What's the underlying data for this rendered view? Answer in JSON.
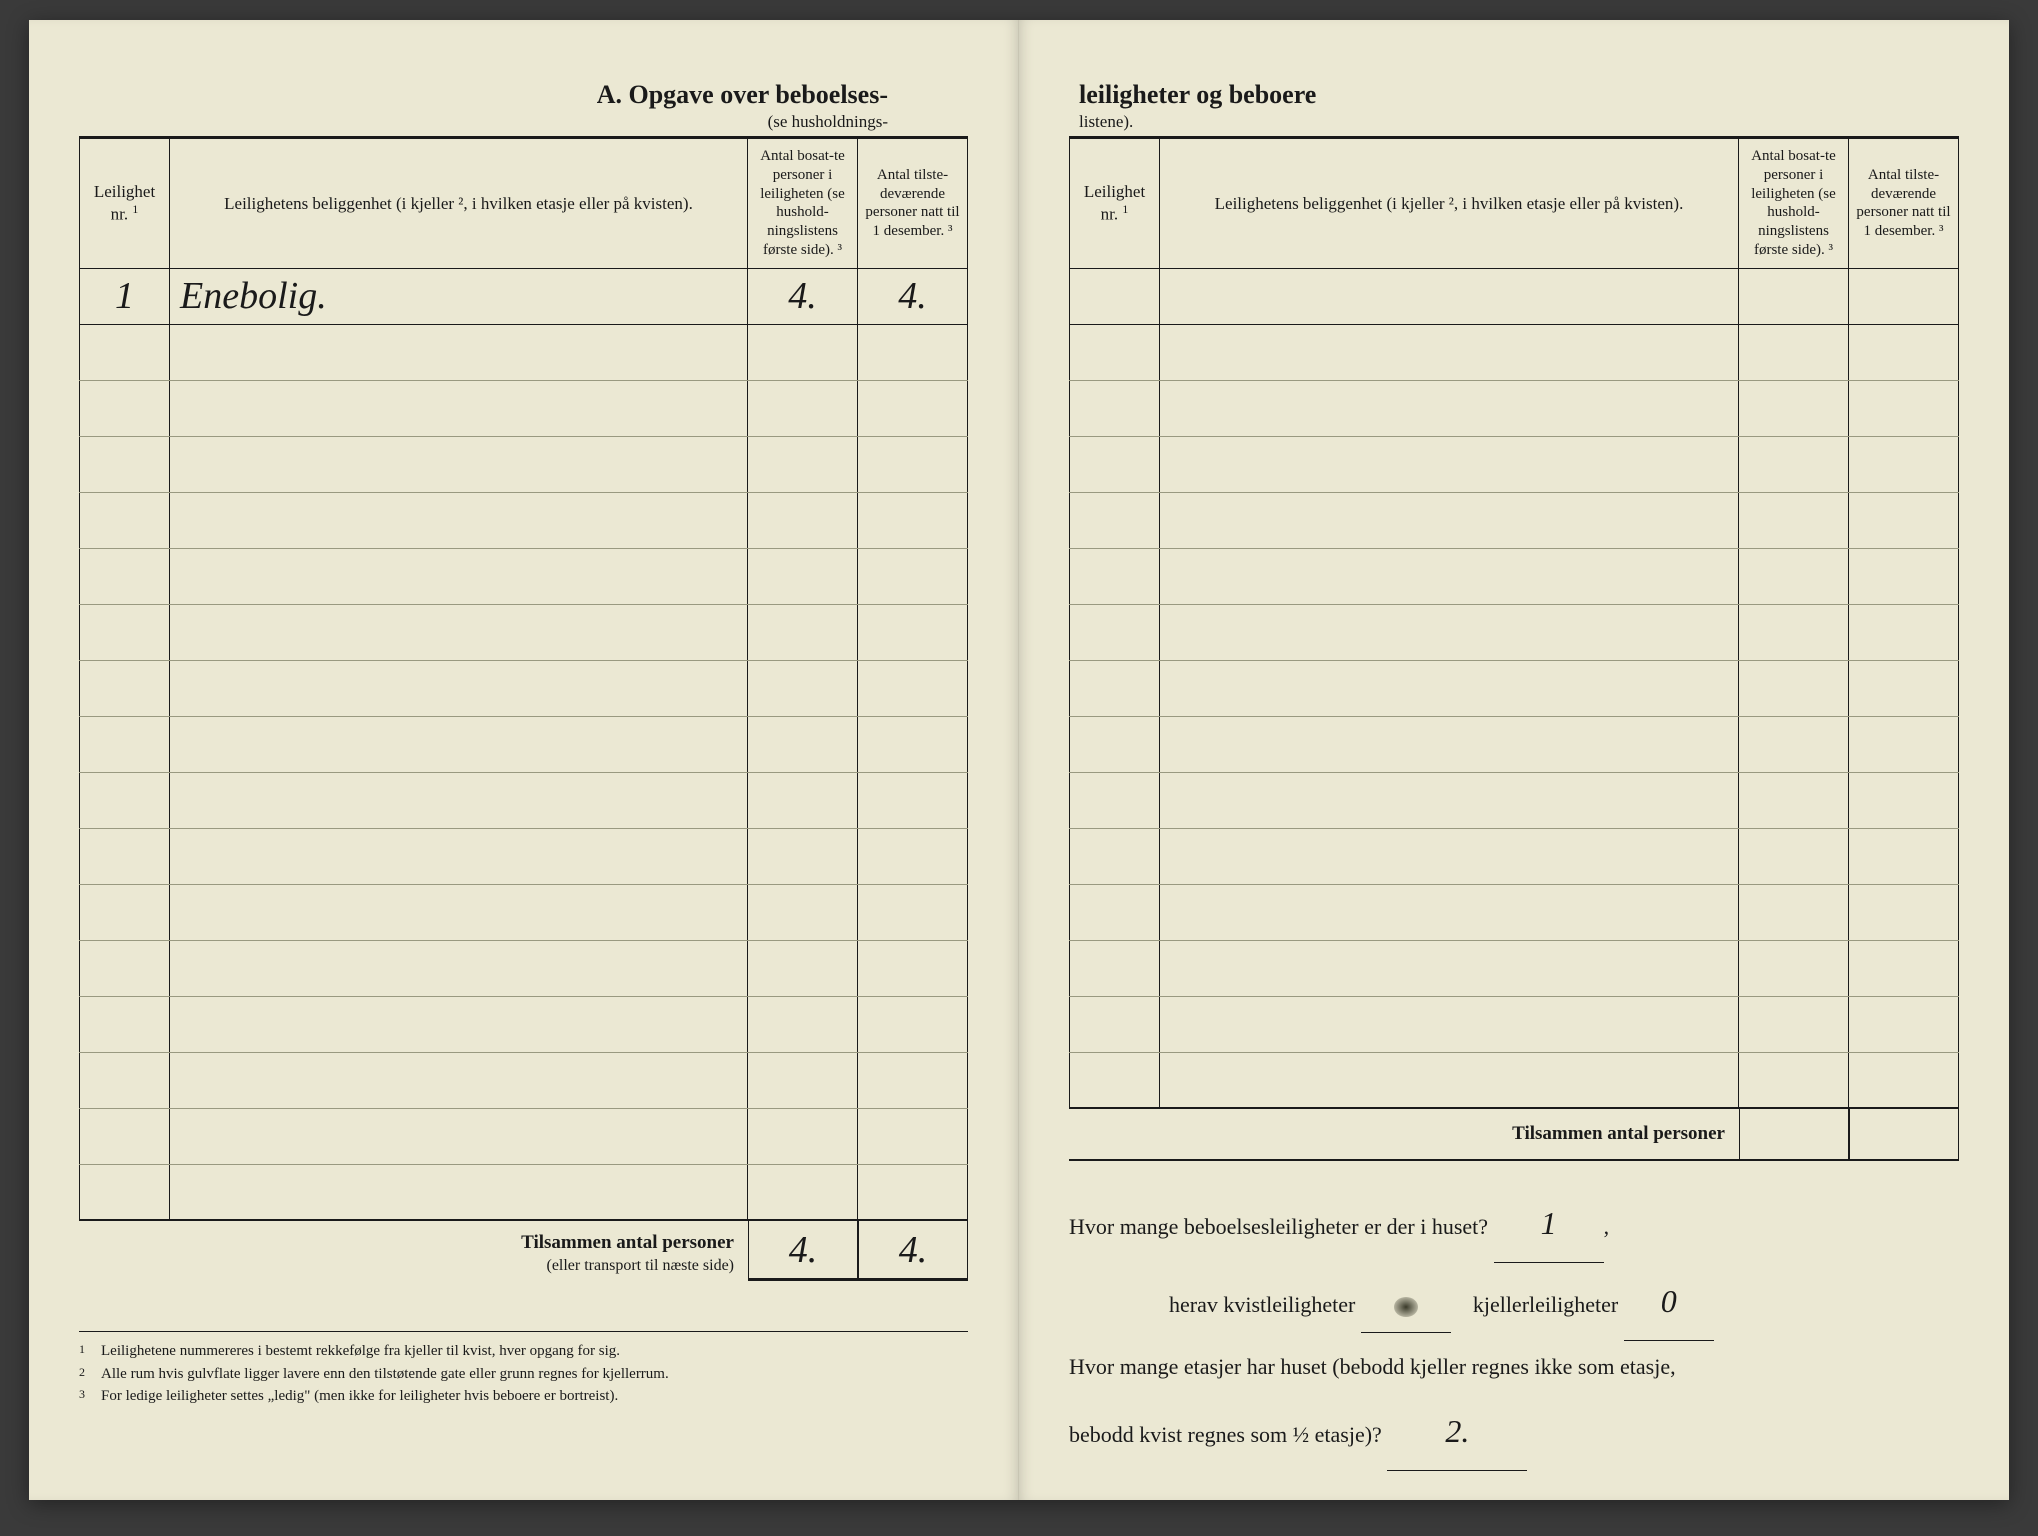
{
  "header": {
    "title_left": "A.  Opgave over beboelses-",
    "subtitle_left": "(se husholdnings-",
    "title_right": "leiligheter og beboere",
    "subtitle_right": "listene)."
  },
  "columns": {
    "col1_line1": "Leilighet",
    "col1_line2": "nr. ",
    "col2": "Leilighetens beliggenhet (i kjeller ², i hvilken etasje eller på kvisten).",
    "col3": "Antal bosat-te personer i leiligheten (se hushold-ningslistens første side). ³",
    "col4": "Antal tilste-deværende personer natt til 1 desember. ³"
  },
  "left_table": {
    "rows": [
      {
        "nr": "1",
        "beliggenhet": "Enebolig.",
        "bosatte": "4.",
        "tilstede": "4."
      },
      {
        "nr": "",
        "beliggenhet": "",
        "bosatte": "",
        "tilstede": ""
      },
      {
        "nr": "",
        "beliggenhet": "",
        "bosatte": "",
        "tilstede": ""
      },
      {
        "nr": "",
        "beliggenhet": "",
        "bosatte": "",
        "tilstede": ""
      },
      {
        "nr": "",
        "beliggenhet": "",
        "bosatte": "",
        "tilstede": ""
      },
      {
        "nr": "",
        "beliggenhet": "",
        "bosatte": "",
        "tilstede": ""
      },
      {
        "nr": "",
        "beliggenhet": "",
        "bosatte": "",
        "tilstede": ""
      },
      {
        "nr": "",
        "beliggenhet": "",
        "bosatte": "",
        "tilstede": ""
      },
      {
        "nr": "",
        "beliggenhet": "",
        "bosatte": "",
        "tilstede": ""
      },
      {
        "nr": "",
        "beliggenhet": "",
        "bosatte": "",
        "tilstede": ""
      },
      {
        "nr": "",
        "beliggenhet": "",
        "bosatte": "",
        "tilstede": ""
      },
      {
        "nr": "",
        "beliggenhet": "",
        "bosatte": "",
        "tilstede": ""
      },
      {
        "nr": "",
        "beliggenhet": "",
        "bosatte": "",
        "tilstede": ""
      },
      {
        "nr": "",
        "beliggenhet": "",
        "bosatte": "",
        "tilstede": ""
      },
      {
        "nr": "",
        "beliggenhet": "",
        "bosatte": "",
        "tilstede": ""
      },
      {
        "nr": "",
        "beliggenhet": "",
        "bosatte": "",
        "tilstede": ""
      },
      {
        "nr": "",
        "beliggenhet": "",
        "bosatte": "",
        "tilstede": ""
      }
    ],
    "totals_label": "Tilsammen antal personer",
    "totals_sublabel": "(eller transport til næste side)",
    "totals_bosatte": "4.",
    "totals_tilstede": "4."
  },
  "right_table": {
    "rows": [
      {
        "nr": "",
        "beliggenhet": "",
        "bosatte": "",
        "tilstede": ""
      },
      {
        "nr": "",
        "beliggenhet": "",
        "bosatte": "",
        "tilstede": ""
      },
      {
        "nr": "",
        "beliggenhet": "",
        "bosatte": "",
        "tilstede": ""
      },
      {
        "nr": "",
        "beliggenhet": "",
        "bosatte": "",
        "tilstede": ""
      },
      {
        "nr": "",
        "beliggenhet": "",
        "bosatte": "",
        "tilstede": ""
      },
      {
        "nr": "",
        "beliggenhet": "",
        "bosatte": "",
        "tilstede": ""
      },
      {
        "nr": "",
        "beliggenhet": "",
        "bosatte": "",
        "tilstede": ""
      },
      {
        "nr": "",
        "beliggenhet": "",
        "bosatte": "",
        "tilstede": ""
      },
      {
        "nr": "",
        "beliggenhet": "",
        "bosatte": "",
        "tilstede": ""
      },
      {
        "nr": "",
        "beliggenhet": "",
        "bosatte": "",
        "tilstede": ""
      },
      {
        "nr": "",
        "beliggenhet": "",
        "bosatte": "",
        "tilstede": ""
      },
      {
        "nr": "",
        "beliggenhet": "",
        "bosatte": "",
        "tilstede": ""
      },
      {
        "nr": "",
        "beliggenhet": "",
        "bosatte": "",
        "tilstede": ""
      },
      {
        "nr": "",
        "beliggenhet": "",
        "bosatte": "",
        "tilstede": ""
      },
      {
        "nr": "",
        "beliggenhet": "",
        "bosatte": "",
        "tilstede": ""
      }
    ],
    "totals_label": "Tilsammen antal personer"
  },
  "footnotes": {
    "f1": "Leilighetene nummereres i bestemt rekkefølge fra kjeller til kvist, hver opgang for sig.",
    "f2": "Alle rum hvis gulvflate ligger lavere enn den tilstøtende gate eller grunn regnes for kjellerrum.",
    "f3": "For ledige leiligheter settes „ledig\" (men ikke for leiligheter hvis beboere er bortreist)."
  },
  "questions": {
    "q1_text": "Hvor mange beboelsesleiligheter er der i huset?",
    "q1_answer": "1",
    "q2a_text": "herav kvistleiligheter",
    "q2a_answer": "",
    "q2b_text": "kjellerleiligheter",
    "q2b_answer": "0",
    "q3_text_a": "Hvor mange etasjer har huset (bebodd kjeller regnes ikke som etasje,",
    "q3_text_b": "bebodd kvist regnes som ½ etasje)?",
    "q3_answer": "2."
  },
  "colors": {
    "paper": "#ebe8d3",
    "ink": "#1a1a1a",
    "rule_light": "#999980"
  }
}
